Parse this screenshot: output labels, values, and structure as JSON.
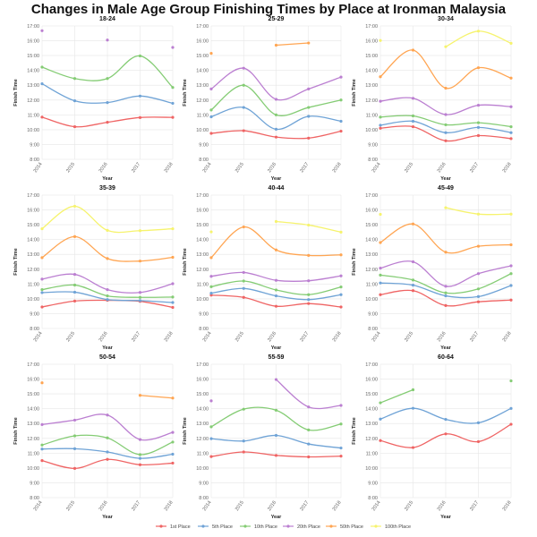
{
  "chart_data": {
    "type": "line",
    "title": "Changes in Male Age Group Finishing Times by Place at Ironman Malaysia",
    "xlabel": "Year",
    "ylabel": "Finish Time",
    "x": [
      "2014",
      "2015",
      "2016",
      "2017",
      "2018"
    ],
    "ylim": [
      8,
      17
    ],
    "yticks": [
      "8:00",
      "9:00",
      "10:00",
      "11:00",
      "12:00",
      "13:00",
      "14:00",
      "15:00",
      "16:00",
      "17:00"
    ],
    "grid": true,
    "legend": "bottom",
    "series_names": [
      "1st Place",
      "5th Place",
      "10th Place",
      "20th Place",
      "50th Place",
      "100th Place"
    ],
    "colors": [
      "#ef6464",
      "#6fa3d6",
      "#84cc74",
      "#bb7fd1",
      "#ffa552",
      "#f6f36e"
    ],
    "panels": [
      {
        "title": "18-24",
        "series": [
          [
            10.85,
            10.2,
            10.5,
            10.82,
            10.83
          ],
          [
            13.1,
            11.95,
            11.83,
            12.27,
            11.78
          ],
          [
            14.22,
            13.45,
            13.45,
            14.98,
            12.85
          ],
          [
            16.68,
            null,
            16.05,
            null,
            15.55
          ],
          [],
          []
        ]
      },
      {
        "title": "25-29",
        "series": [
          [
            9.75,
            9.93,
            9.5,
            9.43,
            9.9
          ],
          [
            10.87,
            11.5,
            10.03,
            10.9,
            10.57
          ],
          [
            11.33,
            13.0,
            11.0,
            11.5,
            12.0
          ],
          [
            12.75,
            14.15,
            12.05,
            12.75,
            13.55
          ],
          [
            15.15,
            null,
            15.7,
            15.85,
            null
          ],
          []
        ]
      },
      {
        "title": "30-34",
        "series": [
          [
            10.1,
            10.2,
            9.25,
            9.6,
            9.4
          ],
          [
            10.3,
            10.57,
            9.8,
            10.15,
            9.8
          ],
          [
            10.85,
            10.93,
            10.33,
            10.47,
            10.2
          ],
          [
            11.92,
            12.12,
            11.02,
            11.65,
            11.55
          ],
          [
            13.57,
            15.37,
            12.8,
            14.18,
            13.48
          ],
          [
            16.02,
            null,
            15.6,
            16.65,
            15.83
          ]
        ]
      },
      {
        "title": "35-39",
        "series": [
          [
            9.45,
            9.85,
            9.9,
            9.83,
            9.42
          ],
          [
            10.42,
            10.45,
            9.95,
            9.88,
            9.75
          ],
          [
            10.62,
            10.93,
            10.2,
            10.1,
            10.12
          ],
          [
            11.33,
            11.65,
            10.62,
            10.43,
            11.02
          ],
          [
            12.78,
            14.2,
            12.72,
            12.55,
            12.8
          ],
          [
            14.73,
            16.25,
            14.62,
            14.6,
            14.73
          ]
        ]
      },
      {
        "title": "40-44",
        "series": [
          [
            10.25,
            10.1,
            9.5,
            9.68,
            9.45
          ],
          [
            10.38,
            10.7,
            10.2,
            9.95,
            10.28
          ],
          [
            10.82,
            11.2,
            10.6,
            10.28,
            10.8
          ],
          [
            11.52,
            11.78,
            11.25,
            11.22,
            11.55
          ],
          [
            12.78,
            14.85,
            13.3,
            12.93,
            12.97
          ],
          [
            14.52,
            null,
            15.22,
            14.98,
            14.5
          ]
        ]
      },
      {
        "title": "45-49",
        "series": [
          [
            10.28,
            10.55,
            9.55,
            9.8,
            9.92
          ],
          [
            11.07,
            10.92,
            10.2,
            10.15,
            10.9
          ],
          [
            11.6,
            11.27,
            10.4,
            10.67,
            11.7
          ],
          [
            12.07,
            12.5,
            10.85,
            11.7,
            12.23
          ],
          [
            13.8,
            15.05,
            13.15,
            13.55,
            13.65
          ],
          [
            15.7,
            null,
            16.15,
            15.72,
            15.72
          ]
        ]
      },
      {
        "title": "50-54",
        "series": [
          [
            10.5,
            9.97,
            10.58,
            10.22,
            10.33
          ],
          [
            11.28,
            11.3,
            11.08,
            10.65,
            10.93
          ],
          [
            11.55,
            12.17,
            12.03,
            10.9,
            11.75
          ],
          [
            12.93,
            13.23,
            13.57,
            11.92,
            12.4
          ],
          [
            15.75,
            null,
            null,
            14.9,
            14.72
          ],
          []
        ]
      },
      {
        "title": "55-59",
        "series": [
          [
            10.77,
            11.08,
            10.85,
            10.75,
            10.8
          ],
          [
            11.98,
            11.82,
            12.2,
            11.62,
            11.35
          ],
          [
            12.78,
            13.97,
            13.9,
            12.57,
            12.97
          ],
          [
            14.53,
            null,
            15.97,
            14.12,
            14.22
          ],
          [],
          []
        ]
      },
      {
        "title": "60-64",
        "series": [
          [
            11.85,
            11.38,
            12.3,
            11.78,
            12.95
          ],
          [
            13.3,
            14.03,
            13.28,
            13.05,
            14.02
          ],
          [
            14.4,
            15.28,
            null,
            null,
            15.88
          ],
          [],
          [],
          []
        ]
      }
    ]
  }
}
